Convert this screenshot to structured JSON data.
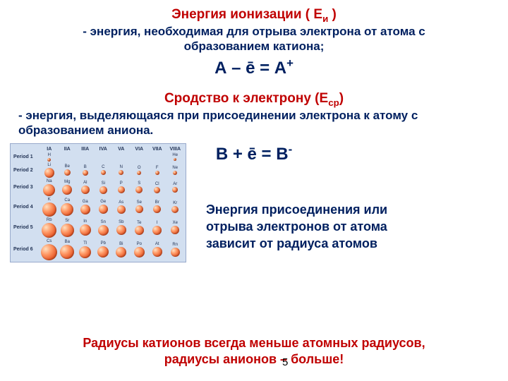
{
  "section1": {
    "title_pre": "Энергия ионизации ( Е",
    "title_sub": "и",
    "title_post": " )",
    "desc_l1": "- энергия, необходимая для отрыва электрона от атома с",
    "desc_l2": "образованием катиона;",
    "eq": "А – ē = А",
    "eq_sup": "+"
  },
  "section2": {
    "title_pre": "Сродство к электрону (Е",
    "title_sub": "ср",
    "title_post": ")",
    "desc": "  - энергия, выделяющаяся при присоединении электрона к атому с образованием аниона.",
    "eq": "В + ē = В",
    "eq_sup": "-"
  },
  "note_l1": " Энергия присоединения или",
  "note_l2": "отрыва электронов от атома",
  "note_l3": "зависит от радиуса атомов",
  "footer_l1": "Радиусы катионов всегда меньше атомных радиусов,",
  "footer_l2": "радиусы анионов – больше!",
  "pagenum": "5",
  "chart": {
    "bg": "#d2dff0",
    "border": "#99aacc",
    "groups": [
      "IA",
      "IIA",
      "IIIA",
      "IVA",
      "VA",
      "VIA",
      "VIIA",
      "VIIIA"
    ],
    "periods": [
      {
        "label": "Period 1",
        "atoms": [
          {
            "s": "H",
            "d": 5
          },
          null,
          null,
          null,
          null,
          null,
          null,
          {
            "s": "He",
            "d": 4
          }
        ]
      },
      {
        "label": "Period 2",
        "atoms": [
          {
            "s": "Li",
            "d": 14
          },
          {
            "s": "Be",
            "d": 9
          },
          {
            "s": "B",
            "d": 8
          },
          {
            "s": "C",
            "d": 7
          },
          {
            "s": "N",
            "d": 7
          },
          {
            "s": "O",
            "d": 6
          },
          {
            "s": "F",
            "d": 6
          },
          {
            "s": "Ne",
            "d": 6
          }
        ]
      },
      {
        "label": "Period 3",
        "atoms": [
          {
            "s": "Na",
            "d": 17
          },
          {
            "s": "Mg",
            "d": 14
          },
          {
            "s": "Al",
            "d": 12
          },
          {
            "s": "Si",
            "d": 11
          },
          {
            "s": "P",
            "d": 10
          },
          {
            "s": "S",
            "d": 10
          },
          {
            "s": "Cl",
            "d": 9
          },
          {
            "s": "Ar",
            "d": 8
          }
        ]
      },
      {
        "label": "Period 4",
        "atoms": [
          {
            "s": "K",
            "d": 20
          },
          {
            "s": "Ca",
            "d": 18
          },
          {
            "s": "Ga",
            "d": 14
          },
          {
            "s": "Ge",
            "d": 13
          },
          {
            "s": "As",
            "d": 12
          },
          {
            "s": "Se",
            "d": 11
          },
          {
            "s": "Br",
            "d": 11
          },
          {
            "s": "Kr",
            "d": 10
          }
        ]
      },
      {
        "label": "Period 5",
        "atoms": [
          {
            "s": "Rb",
            "d": 21
          },
          {
            "s": "Sr",
            "d": 19
          },
          {
            "s": "In",
            "d": 16
          },
          {
            "s": "Sn",
            "d": 15
          },
          {
            "s": "Sb",
            "d": 14
          },
          {
            "s": "Te",
            "d": 13
          },
          {
            "s": "I",
            "d": 13
          },
          {
            "s": "Xe",
            "d": 12
          }
        ]
      },
      {
        "label": "Period 6",
        "atoms": [
          {
            "s": "Cs",
            "d": 23
          },
          {
            "s": "Ba",
            "d": 20
          },
          {
            "s": "Tl",
            "d": 17
          },
          {
            "s": "Pb",
            "d": 16
          },
          {
            "s": "Bi",
            "d": 15
          },
          {
            "s": "Po",
            "d": 15
          },
          {
            "s": "At",
            "d": 14
          },
          {
            "s": "Rn",
            "d": 13
          }
        ]
      }
    ]
  }
}
